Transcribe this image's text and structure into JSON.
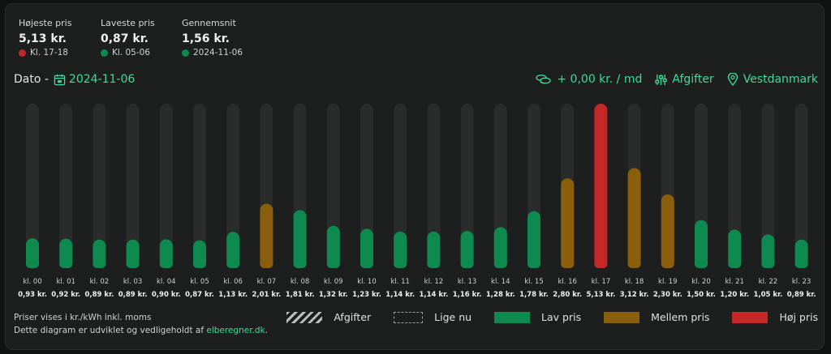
{
  "stats": [
    {
      "label": "Højeste pris",
      "value": "5,13 kr.",
      "sub": "Kl. 17-18",
      "dot_color": "#c62828"
    },
    {
      "label": "Laveste pris",
      "value": "0,87 kr.",
      "sub": "Kl. 05-06",
      "dot_color": "#0f8a4f"
    },
    {
      "label": "Gennemsnit",
      "value": "1,56 kr.",
      "sub": "2024-11-06",
      "dot_color": "#0f8a4f"
    }
  ],
  "date_label": "Dato -",
  "date_value": "2024-11-06",
  "toolbar": {
    "fee_label": "+ 0,00 kr. / md",
    "afgifter_label": "Afgifter",
    "region_label": "Vestdanmark",
    "icons": [
      "coins-icon",
      "sliders-icon",
      "location-pin-icon",
      "calendar-icon"
    ]
  },
  "chart_data": {
    "type": "bar",
    "categories": [
      "kl. 00",
      "kl. 01",
      "kl. 02",
      "kl. 03",
      "kl. 04",
      "kl. 05",
      "kl. 06",
      "kl. 07",
      "kl. 08",
      "kl. 09",
      "kl. 10",
      "kl. 11",
      "kl. 12",
      "kl. 13",
      "kl. 14",
      "kl. 15",
      "kl. 16",
      "kl. 17",
      "kl. 18",
      "kl. 19",
      "kl. 20",
      "kl. 21",
      "kl. 22",
      "kl. 23"
    ],
    "values": [
      0.93,
      0.92,
      0.89,
      0.89,
      0.9,
      0.87,
      1.13,
      2.01,
      1.81,
      1.32,
      1.23,
      1.14,
      1.14,
      1.16,
      1.28,
      1.78,
      2.8,
      5.13,
      3.12,
      2.3,
      1.5,
      1.2,
      1.05,
      0.89
    ],
    "value_labels": [
      "0,93 kr.",
      "0,92 kr.",
      "0,89 kr.",
      "0,89 kr.",
      "0,90 kr.",
      "0,87 kr.",
      "1,13 kr.",
      "2,01 kr.",
      "1,81 kr.",
      "1,32 kr.",
      "1,23 kr.",
      "1,14 kr.",
      "1,14 kr.",
      "1,16 kr.",
      "1,28 kr.",
      "1,78 kr.",
      "2,80 kr.",
      "5,13 kr.",
      "3,12 kr.",
      "2,30 kr.",
      "1,50 kr.",
      "1,20 kr.",
      "1,05 kr.",
      "0,89 kr."
    ],
    "levels": [
      "low",
      "low",
      "low",
      "low",
      "low",
      "low",
      "low",
      "mid",
      "low",
      "low",
      "low",
      "low",
      "low",
      "low",
      "low",
      "low",
      "mid",
      "high",
      "mid",
      "mid",
      "low",
      "low",
      "low",
      "low"
    ],
    "ylim": [
      0,
      5.13
    ],
    "colors": {
      "low": "#0f8a4f",
      "mid": "#8a5e0b",
      "high": "#c62828",
      "track": "#2a2c2c"
    }
  },
  "footnote": {
    "line1": "Priser vises i kr./kWh inkl. moms",
    "line2_prefix": "Dette diagram er udviklet og vedligeholdt af ",
    "link": "elberegner.dk",
    "line2_suffix": "."
  },
  "legend": [
    {
      "label": "Afgifter",
      "style": "hatched"
    },
    {
      "label": "Lige nu",
      "style": "dashed"
    },
    {
      "label": "Lav pris",
      "color": "#0f8a4f"
    },
    {
      "label": "Mellem pris",
      "color": "#8a5e0b"
    },
    {
      "label": "Høj pris",
      "color": "#c62828"
    }
  ]
}
